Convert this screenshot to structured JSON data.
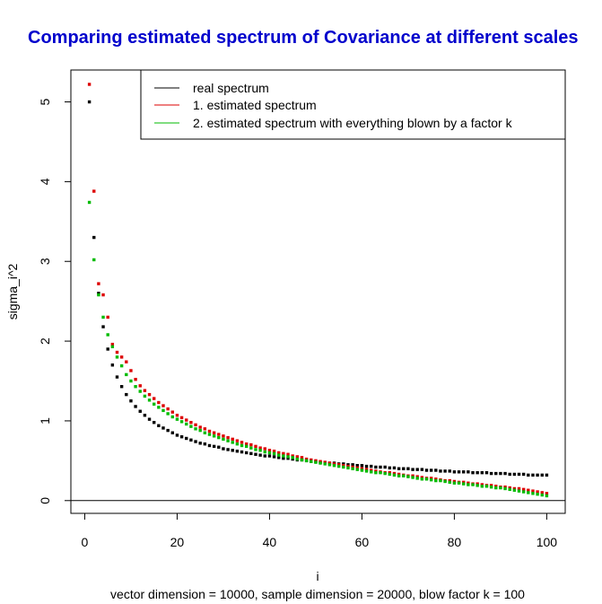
{
  "chart_data": {
    "type": "scatter",
    "title": "Comparing estimated spectrum of Covariance at different scales",
    "xlabel": "i",
    "ylabel": "sigma_i^2",
    "subtitle": "vector dimension = 10000, sample dimension = 20000, blow factor k = 100",
    "xlim": [
      -3,
      104
    ],
    "ylim": [
      -0.16,
      5.4
    ],
    "xticks": [
      0,
      20,
      40,
      60,
      80,
      100
    ],
    "yticks": [
      0,
      1,
      2,
      3,
      4,
      5
    ],
    "hline": 0,
    "legend_position": "top-right",
    "series": [
      {
        "name": "real spectrum",
        "color": "#000000",
        "x": [
          1,
          2,
          3,
          4,
          5,
          6,
          7,
          8,
          9,
          10,
          11,
          12,
          13,
          14,
          15,
          16,
          17,
          18,
          19,
          20,
          21,
          22,
          23,
          24,
          25,
          26,
          27,
          28,
          29,
          30,
          31,
          32,
          33,
          34,
          35,
          36,
          37,
          38,
          39,
          40,
          41,
          42,
          43,
          44,
          45,
          46,
          47,
          48,
          49,
          50,
          51,
          52,
          53,
          54,
          55,
          56,
          57,
          58,
          59,
          60,
          61,
          62,
          63,
          64,
          65,
          66,
          67,
          68,
          69,
          70,
          71,
          72,
          73,
          74,
          75,
          76,
          77,
          78,
          79,
          80,
          81,
          82,
          83,
          84,
          85,
          86,
          87,
          88,
          89,
          90,
          91,
          92,
          93,
          94,
          95,
          96,
          97,
          98,
          99,
          100
        ],
        "y": [
          5.0,
          3.3,
          2.6,
          2.18,
          1.9,
          1.7,
          1.55,
          1.43,
          1.33,
          1.25,
          1.18,
          1.12,
          1.07,
          1.02,
          0.98,
          0.94,
          0.91,
          0.88,
          0.85,
          0.82,
          0.8,
          0.78,
          0.76,
          0.74,
          0.72,
          0.71,
          0.69,
          0.68,
          0.67,
          0.65,
          0.64,
          0.63,
          0.62,
          0.61,
          0.6,
          0.59,
          0.58,
          0.57,
          0.56,
          0.56,
          0.55,
          0.54,
          0.53,
          0.53,
          0.52,
          0.51,
          0.51,
          0.5,
          0.49,
          0.49,
          0.48,
          0.48,
          0.47,
          0.47,
          0.46,
          0.46,
          0.45,
          0.45,
          0.44,
          0.44,
          0.43,
          0.43,
          0.42,
          0.42,
          0.42,
          0.41,
          0.41,
          0.4,
          0.4,
          0.4,
          0.39,
          0.39,
          0.39,
          0.38,
          0.38,
          0.38,
          0.37,
          0.37,
          0.37,
          0.36,
          0.36,
          0.36,
          0.36,
          0.35,
          0.35,
          0.35,
          0.35,
          0.34,
          0.34,
          0.34,
          0.34,
          0.33,
          0.33,
          0.33,
          0.33,
          0.32,
          0.32,
          0.32,
          0.32,
          0.32
        ]
      },
      {
        "name": "1. estimated spectrum",
        "color": "#dd0000",
        "x": [
          1,
          2,
          3,
          4,
          5,
          6,
          7,
          8,
          9,
          10,
          11,
          12,
          13,
          14,
          15,
          16,
          17,
          18,
          19,
          20,
          21,
          22,
          23,
          24,
          25,
          26,
          27,
          28,
          29,
          30,
          31,
          32,
          33,
          34,
          35,
          36,
          37,
          38,
          39,
          40,
          41,
          42,
          43,
          44,
          45,
          46,
          47,
          48,
          49,
          50,
          51,
          52,
          53,
          54,
          55,
          56,
          57,
          58,
          59,
          60,
          61,
          62,
          63,
          64,
          65,
          66,
          67,
          68,
          69,
          70,
          71,
          72,
          73,
          74,
          75,
          76,
          77,
          78,
          79,
          80,
          81,
          82,
          83,
          84,
          85,
          86,
          87,
          88,
          89,
          90,
          91,
          92,
          93,
          94,
          95,
          96,
          97,
          98,
          99,
          100
        ],
        "y": [
          5.22,
          3.88,
          2.72,
          2.58,
          2.3,
          1.96,
          1.86,
          1.8,
          1.74,
          1.63,
          1.52,
          1.44,
          1.38,
          1.33,
          1.28,
          1.23,
          1.19,
          1.15,
          1.11,
          1.07,
          1.04,
          1.01,
          0.98,
          0.95,
          0.92,
          0.9,
          0.87,
          0.85,
          0.83,
          0.81,
          0.79,
          0.77,
          0.75,
          0.73,
          0.71,
          0.7,
          0.68,
          0.66,
          0.65,
          0.63,
          0.62,
          0.6,
          0.59,
          0.58,
          0.56,
          0.55,
          0.54,
          0.52,
          0.51,
          0.5,
          0.49,
          0.48,
          0.47,
          0.46,
          0.45,
          0.44,
          0.43,
          0.42,
          0.41,
          0.4,
          0.39,
          0.38,
          0.37,
          0.36,
          0.35,
          0.35,
          0.34,
          0.33,
          0.32,
          0.31,
          0.31,
          0.3,
          0.29,
          0.28,
          0.28,
          0.27,
          0.26,
          0.25,
          0.25,
          0.24,
          0.23,
          0.23,
          0.22,
          0.21,
          0.21,
          0.2,
          0.19,
          0.19,
          0.18,
          0.17,
          0.17,
          0.16,
          0.15,
          0.15,
          0.14,
          0.13,
          0.12,
          0.11,
          0.1,
          0.09
        ]
      },
      {
        "name": "2. estimated spectrum with everything blown by a factor k",
        "color": "#00bb00",
        "x": [
          1,
          2,
          3,
          4,
          5,
          6,
          7,
          8,
          9,
          10,
          11,
          12,
          13,
          14,
          15,
          16,
          17,
          18,
          19,
          20,
          21,
          22,
          23,
          24,
          25,
          26,
          27,
          28,
          29,
          30,
          31,
          32,
          33,
          34,
          35,
          36,
          37,
          38,
          39,
          40,
          41,
          42,
          43,
          44,
          45,
          46,
          47,
          48,
          49,
          50,
          51,
          52,
          53,
          54,
          55,
          56,
          57,
          58,
          59,
          60,
          61,
          62,
          63,
          64,
          65,
          66,
          67,
          68,
          69,
          70,
          71,
          72,
          73,
          74,
          75,
          76,
          77,
          78,
          79,
          80,
          81,
          82,
          83,
          84,
          85,
          86,
          87,
          88,
          89,
          90,
          91,
          92,
          93,
          94,
          95,
          96,
          97,
          98,
          99,
          100
        ],
        "y": [
          3.74,
          3.02,
          2.58,
          2.3,
          2.08,
          1.93,
          1.8,
          1.69,
          1.58,
          1.5,
          1.43,
          1.37,
          1.31,
          1.26,
          1.21,
          1.17,
          1.13,
          1.09,
          1.05,
          1.02,
          0.99,
          0.96,
          0.93,
          0.9,
          0.88,
          0.85,
          0.83,
          0.81,
          0.79,
          0.77,
          0.75,
          0.73,
          0.71,
          0.69,
          0.68,
          0.66,
          0.64,
          0.63,
          0.61,
          0.6,
          0.59,
          0.57,
          0.56,
          0.55,
          0.54,
          0.52,
          0.51,
          0.5,
          0.49,
          0.48,
          0.47,
          0.46,
          0.45,
          0.44,
          0.43,
          0.42,
          0.41,
          0.4,
          0.39,
          0.38,
          0.37,
          0.36,
          0.35,
          0.35,
          0.34,
          0.33,
          0.32,
          0.31,
          0.31,
          0.3,
          0.29,
          0.28,
          0.27,
          0.27,
          0.26,
          0.25,
          0.25,
          0.24,
          0.23,
          0.22,
          0.22,
          0.21,
          0.2,
          0.2,
          0.19,
          0.18,
          0.18,
          0.17,
          0.16,
          0.16,
          0.15,
          0.14,
          0.13,
          0.12,
          0.11,
          0.1,
          0.09,
          0.08,
          0.07,
          0.06
        ]
      }
    ]
  }
}
